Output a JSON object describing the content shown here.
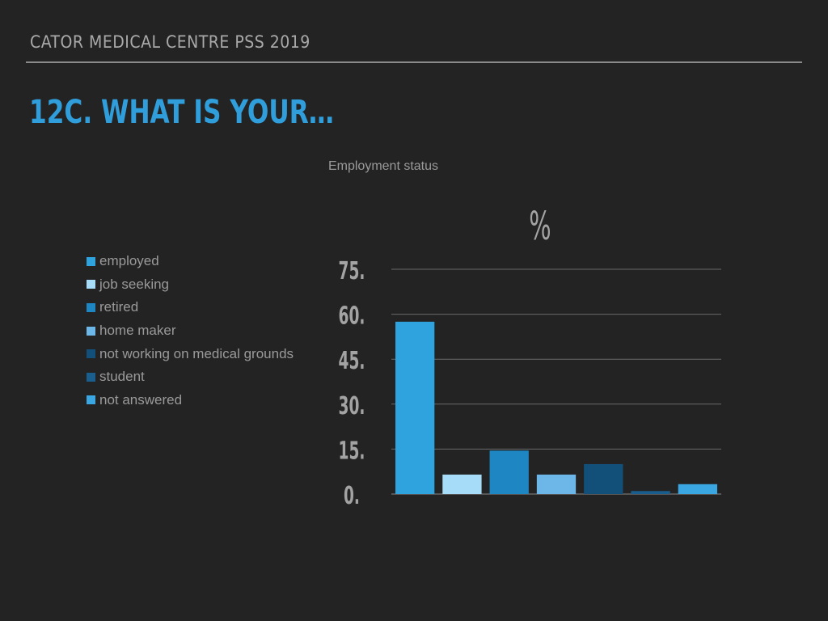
{
  "header": {
    "title": "CATOR MEDICAL CENTRE PSS 2019"
  },
  "slide": {
    "title": "12C. WHAT IS YOUR…"
  },
  "chart_data": {
    "type": "bar",
    "title": "Employment status",
    "ylabel": "%",
    "xlabel": "",
    "ylim": [
      0,
      75
    ],
    "yticks": [
      0,
      15,
      30,
      45,
      60,
      75
    ],
    "ytick_labels": [
      "0.",
      "15.",
      "30.",
      "45.",
      "60.",
      "75."
    ],
    "grid": true,
    "legend_position": "left",
    "categories": [
      "employed",
      "job seeking",
      "retired",
      "home maker",
      "not working on medical grounds",
      "student",
      "not answered"
    ],
    "values": [
      57.5,
      6.5,
      14.5,
      6.5,
      10.0,
      1.0,
      3.3
    ],
    "colors": [
      "#2fa3de",
      "#a6dcf7",
      "#1f86c4",
      "#6db7e8",
      "#124f79",
      "#1a5e8e",
      "#3aa7e2"
    ]
  }
}
